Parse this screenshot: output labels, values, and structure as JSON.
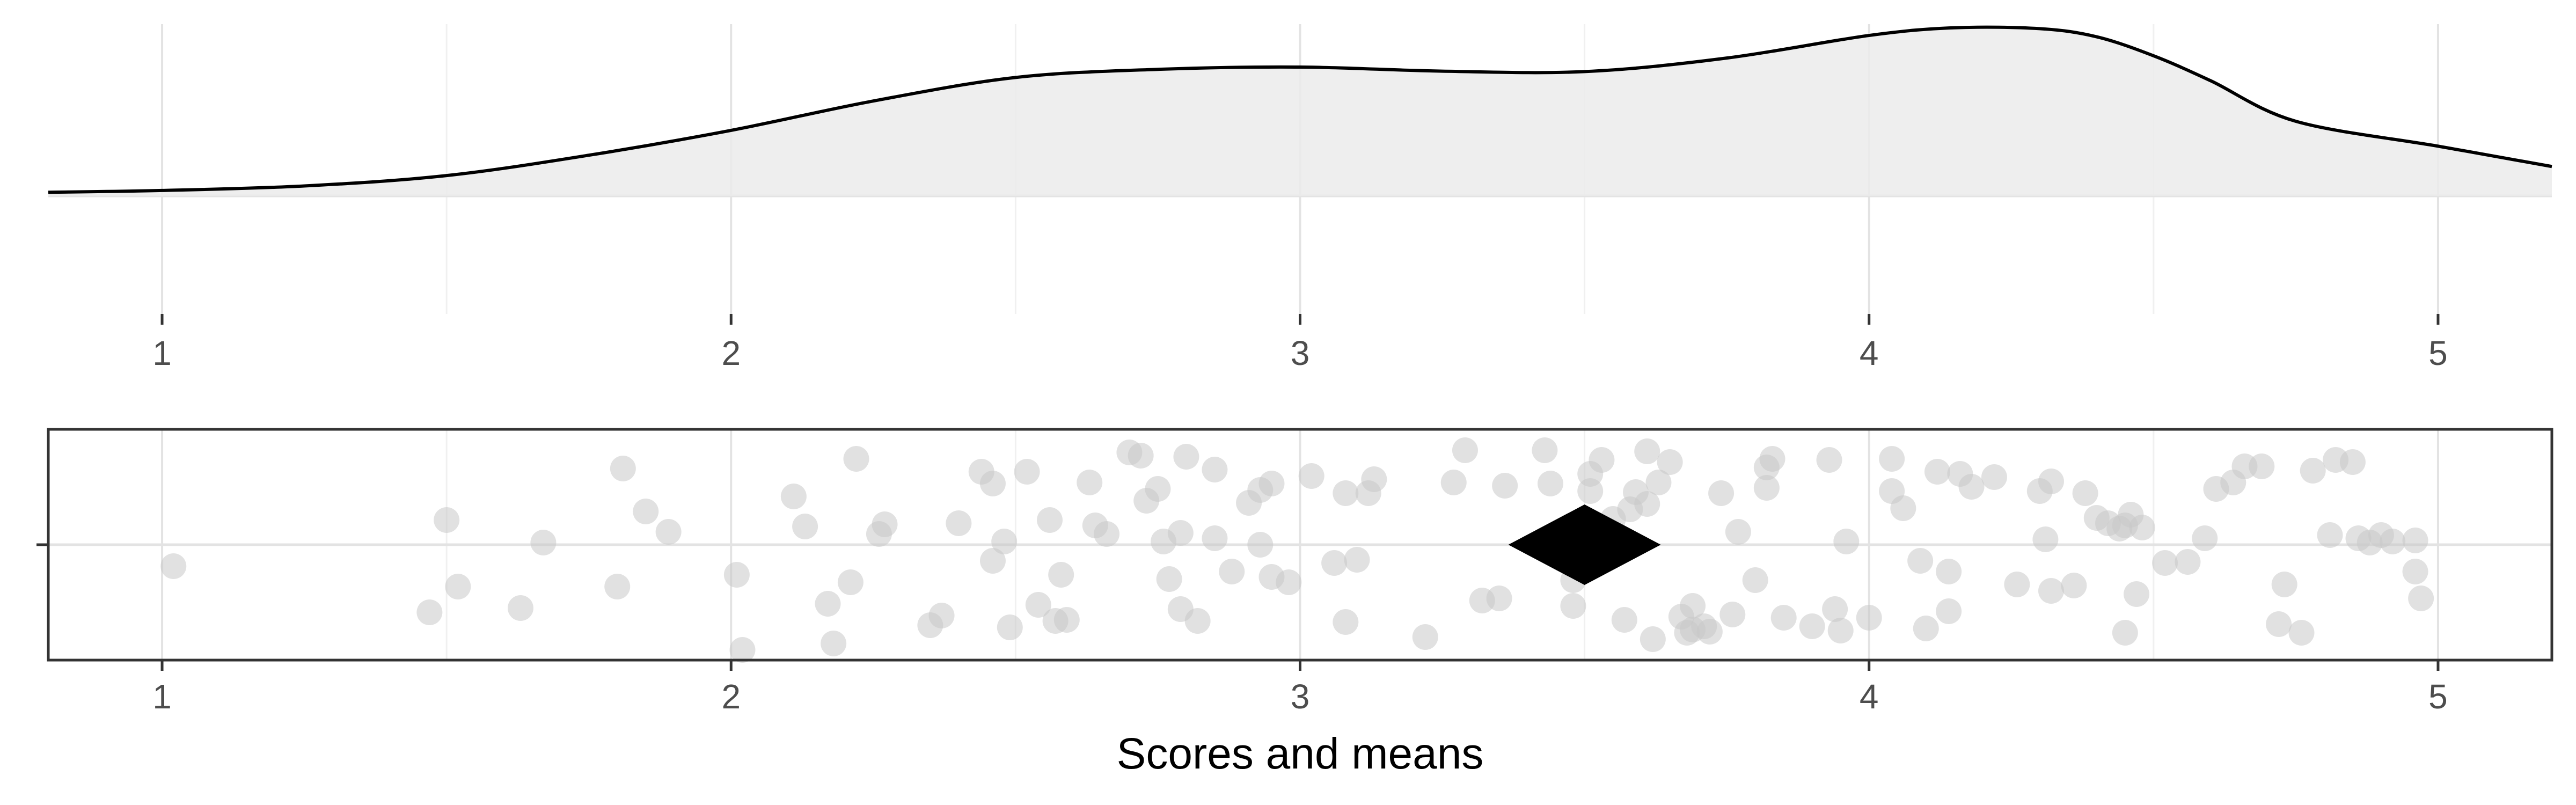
{
  "colors": {
    "density_fill": "#ebebeb",
    "density_line": "#000000",
    "grid_major": "#e3e3e3",
    "grid_minor": "#f0f0f0",
    "point": "#c8c8c8",
    "mean_marker": "#000000",
    "panel_border": "#333333",
    "tick": "#333333"
  },
  "chart_data": [
    {
      "type": "area",
      "panel": "density",
      "xlim": [
        0.8,
        5.2
      ],
      "x_ticks": [
        1,
        2,
        3,
        4,
        5
      ],
      "tick_labels": [
        "1",
        "2",
        "3",
        "4",
        "5"
      ],
      "grid": true,
      "series": [
        {
          "x": [
            0.8,
            1.0,
            1.25,
            1.5,
            1.75,
            2.0,
            2.25,
            2.5,
            2.75,
            3.0,
            3.25,
            3.5,
            3.75,
            4.0,
            4.15,
            4.3,
            4.4,
            4.5,
            4.6,
            4.75,
            5.0,
            5.2
          ],
          "y": [
            0.008,
            0.012,
            0.022,
            0.045,
            0.09,
            0.145,
            0.21,
            0.262,
            0.28,
            0.285,
            0.276,
            0.275,
            0.305,
            0.355,
            0.372,
            0.37,
            0.352,
            0.31,
            0.255,
            0.165,
            0.11,
            0.065
          ]
        }
      ],
      "ylim": [
        0,
        0.38
      ]
    },
    {
      "type": "scatter",
      "panel": "points",
      "xlim": [
        0.8,
        5.2
      ],
      "x_ticks": [
        1,
        2,
        3,
        4,
        5
      ],
      "tick_labels": [
        "1",
        "2",
        "3",
        "4",
        "5"
      ],
      "xlabel": "Scores and means",
      "grid": true,
      "mean": 3.5,
      "points": [
        [
          1.02,
          -0.2
        ],
        [
          1.47,
          -0.63
        ],
        [
          1.5,
          0.23
        ],
        [
          1.52,
          -0.39
        ],
        [
          1.63,
          -0.59
        ],
        [
          1.67,
          0.02
        ],
        [
          1.8,
          -0.39
        ],
        [
          1.81,
          0.71
        ],
        [
          1.85,
          0.31
        ],
        [
          1.89,
          0.12
        ],
        [
          2.01,
          -0.28
        ],
        [
          2.02,
          -0.98
        ],
        [
          2.11,
          0.45
        ],
        [
          2.13,
          0.17
        ],
        [
          2.17,
          -0.55
        ],
        [
          2.18,
          -0.92
        ],
        [
          2.21,
          -0.35
        ],
        [
          2.22,
          0.8
        ],
        [
          2.26,
          0.1
        ],
        [
          2.27,
          0.19
        ],
        [
          2.35,
          -0.75
        ],
        [
          2.37,
          -0.66
        ],
        [
          2.4,
          0.2
        ],
        [
          2.44,
          0.68
        ],
        [
          2.46,
          -0.15
        ],
        [
          2.46,
          0.57
        ],
        [
          2.48,
          0.03
        ],
        [
          2.49,
          -0.77
        ],
        [
          2.52,
          0.68
        ],
        [
          2.54,
          -0.56
        ],
        [
          2.56,
          0.23
        ],
        [
          2.57,
          -0.71
        ],
        [
          2.58,
          -0.28
        ],
        [
          2.59,
          -0.7
        ],
        [
          2.63,
          0.58
        ],
        [
          2.64,
          0.18
        ],
        [
          2.66,
          0.1
        ],
        [
          2.7,
          0.86
        ],
        [
          2.72,
          0.83
        ],
        [
          2.73,
          0.41
        ],
        [
          2.75,
          0.52
        ],
        [
          2.76,
          0.03
        ],
        [
          2.77,
          -0.32
        ],
        [
          2.79,
          0.11
        ],
        [
          2.79,
          -0.6
        ],
        [
          2.8,
          0.82
        ],
        [
          2.82,
          -0.71
        ],
        [
          2.85,
          0.06
        ],
        [
          2.85,
          0.7
        ],
        [
          2.88,
          -0.25
        ],
        [
          2.91,
          0.39
        ],
        [
          2.93,
          0.0
        ],
        [
          2.93,
          0.51
        ],
        [
          2.95,
          0.57
        ],
        [
          2.95,
          -0.3
        ],
        [
          2.98,
          -0.35
        ],
        [
          3.02,
          0.64
        ],
        [
          3.06,
          -0.17
        ],
        [
          3.08,
          0.48
        ],
        [
          3.08,
          -0.72
        ],
        [
          3.1,
          -0.14
        ],
        [
          3.12,
          0.48
        ],
        [
          3.13,
          0.61
        ],
        [
          3.22,
          -0.86
        ],
        [
          3.27,
          0.58
        ],
        [
          3.29,
          0.88
        ],
        [
          3.32,
          -0.52
        ],
        [
          3.35,
          -0.5
        ],
        [
          3.36,
          0.55
        ],
        [
          3.43,
          0.88
        ],
        [
          3.44,
          0.57
        ],
        [
          3.48,
          -0.57
        ],
        [
          3.48,
          -0.33
        ],
        [
          3.51,
          0.5
        ],
        [
          3.51,
          0.66
        ],
        [
          3.53,
          0.79
        ],
        [
          3.55,
          0.24
        ],
        [
          3.57,
          -0.7
        ],
        [
          3.58,
          0.33
        ],
        [
          3.59,
          0.49
        ],
        [
          3.61,
          0.87
        ],
        [
          3.61,
          0.38
        ],
        [
          3.62,
          -0.88
        ],
        [
          3.63,
          0.58
        ],
        [
          3.65,
          0.77
        ],
        [
          3.67,
          -0.67
        ],
        [
          3.68,
          -0.82
        ],
        [
          3.69,
          -0.79
        ],
        [
          3.69,
          -0.57
        ],
        [
          3.71,
          -0.76
        ],
        [
          3.72,
          -0.81
        ],
        [
          3.74,
          0.48
        ],
        [
          3.76,
          -0.65
        ],
        [
          3.77,
          0.12
        ],
        [
          3.8,
          -0.33
        ],
        [
          3.82,
          0.72
        ],
        [
          3.82,
          0.53
        ],
        [
          3.83,
          0.8
        ],
        [
          3.85,
          -0.68
        ],
        [
          3.9,
          -0.76
        ],
        [
          3.93,
          0.79
        ],
        [
          3.94,
          -0.6
        ],
        [
          3.95,
          -0.8
        ],
        [
          3.96,
          0.03
        ],
        [
          4.0,
          -0.68
        ],
        [
          4.04,
          0.8
        ],
        [
          4.04,
          0.5
        ],
        [
          4.06,
          0.34
        ],
        [
          4.09,
          -0.15
        ],
        [
          4.1,
          -0.78
        ],
        [
          4.12,
          0.68
        ],
        [
          4.14,
          -0.62
        ],
        [
          4.14,
          -0.25
        ],
        [
          4.16,
          0.66
        ],
        [
          4.18,
          0.54
        ],
        [
          4.22,
          0.63
        ],
        [
          4.26,
          -0.37
        ],
        [
          4.3,
          0.5
        ],
        [
          4.31,
          0.05
        ],
        [
          4.32,
          -0.43
        ],
        [
          4.32,
          0.59
        ],
        [
          4.36,
          -0.38
        ],
        [
          4.38,
          0.48
        ],
        [
          4.4,
          0.25
        ],
        [
          4.42,
          0.2
        ],
        [
          4.44,
          0.15
        ],
        [
          4.45,
          -0.82
        ],
        [
          4.45,
          0.18
        ],
        [
          4.46,
          0.28
        ],
        [
          4.47,
          -0.46
        ],
        [
          4.48,
          0.16
        ],
        [
          4.52,
          -0.17
        ],
        [
          4.56,
          -0.16
        ],
        [
          4.59,
          0.06
        ],
        [
          4.61,
          0.52
        ],
        [
          4.64,
          0.58
        ],
        [
          4.66,
          0.73
        ],
        [
          4.69,
          0.73
        ],
        [
          4.72,
          -0.74
        ],
        [
          4.73,
          -0.37
        ],
        [
          4.76,
          -0.82
        ],
        [
          4.78,
          0.69
        ],
        [
          4.81,
          0.09
        ],
        [
          4.82,
          0.79
        ],
        [
          4.85,
          0.77
        ],
        [
          4.86,
          0.06
        ],
        [
          4.88,
          0.02
        ],
        [
          4.9,
          0.09
        ],
        [
          4.92,
          0.03
        ],
        [
          4.96,
          0.04
        ],
        [
          4.96,
          -0.25
        ],
        [
          4.97,
          -0.5
        ]
      ]
    }
  ]
}
